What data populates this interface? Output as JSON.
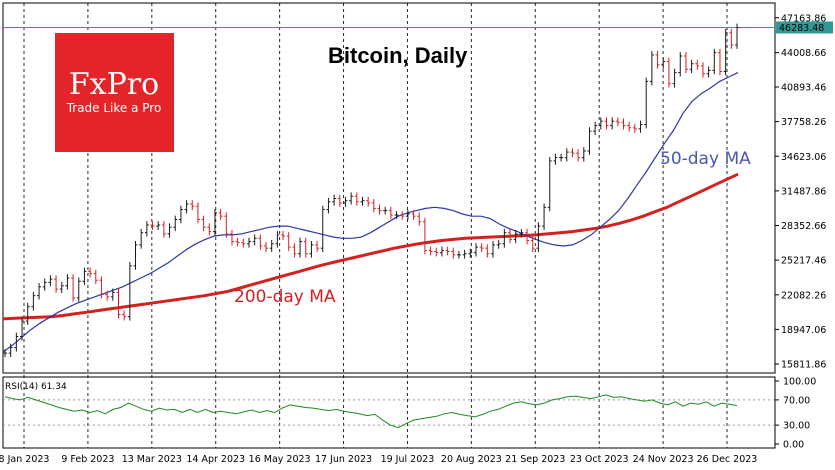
{
  "chart_data": {
    "type": "line",
    "title": "Bitcoin, Daily",
    "logo": {
      "brand": "FxPro",
      "tagline": "Trade Like a Pro",
      "color": "#e3252a"
    },
    "price_axis": {
      "ylim": [
        15000,
        48500
      ],
      "ticks": [
        "47163.86",
        "44008.66",
        "40893.46",
        "37758.26",
        "34623.06",
        "31487.86",
        "28352.66",
        "25217.46",
        "22082.26",
        "18947.06",
        "15811.86"
      ],
      "tick_values": [
        47163.86,
        44008.66,
        40893.46,
        37758.26,
        34623.06,
        31487.86,
        28352.66,
        25217.46,
        22082.26,
        18947.06,
        15811.86
      ],
      "current_price": "46283.48",
      "current_price_value": 46283.48
    },
    "x_axis": {
      "labels": [
        "8 Jan 2023",
        "9 Feb 2023",
        "13 Mar 2023",
        "14 Apr 2023",
        "16 May 2023",
        "17 Jun 2023",
        "19 Jul 2023",
        "20 Aug 2023",
        "21 Sep 2023",
        "23 Oct 2023",
        "24 Nov 2023",
        "26 Dec 2023"
      ]
    },
    "series": [
      {
        "name": "Price",
        "color": "#000000",
        "values": [
          16800,
          17300,
          18300,
          19700,
          21000,
          22000,
          22800,
          23200,
          23500,
          22600,
          22900,
          23600,
          21800,
          23300,
          24200,
          24000,
          23400,
          22100,
          21900,
          22300,
          20300,
          20100,
          24700,
          26600,
          27700,
          28400,
          28300,
          28400,
          27600,
          28200,
          28900,
          29800,
          30300,
          30100,
          28900,
          28200,
          27800,
          29500,
          29200,
          27600,
          26900,
          26800,
          26700,
          26900,
          27200,
          26500,
          26300,
          26700,
          27500,
          27400,
          26400,
          25800,
          26900,
          25800,
          26600,
          26300,
          29800,
          30500,
          30800,
          30400,
          30600,
          31000,
          30500,
          30600,
          30400,
          29900,
          29700,
          29700,
          29300,
          29300,
          29200,
          29400,
          29200,
          28700,
          26100,
          26000,
          25900,
          26100,
          26000,
          25700,
          25700,
          25800,
          25900,
          26400,
          26300,
          25800,
          26600,
          26700,
          27700,
          27100,
          27600,
          27700,
          27000,
          26300,
          28300,
          30000,
          34200,
          34500,
          34500,
          35000,
          34900,
          34500,
          35100,
          36900,
          37400,
          37800,
          37400,
          37800,
          37700,
          37400,
          37200,
          37100,
          37500,
          41400,
          43800,
          42900,
          43200,
          41200,
          42200,
          43700,
          42500,
          43000,
          42800,
          42100,
          42400,
          44000,
          42300,
          45800,
          44700,
          46283
        ]
      },
      {
        "name": "50-day MA",
        "color": "#2c38a8",
        "values": [
          16900,
          17500,
          18200,
          18900,
          19500,
          20000,
          20500,
          20900,
          21300,
          21600,
          21900,
          22200,
          22500,
          22800,
          23200,
          23600,
          24000,
          24500,
          25000,
          25600,
          26200,
          26700,
          27100,
          27400,
          27500,
          27500,
          27600,
          27800,
          28000,
          28200,
          28300,
          28300,
          28100,
          27900,
          27700,
          27500,
          27300,
          27200,
          27200,
          27300,
          27700,
          28200,
          28700,
          29200,
          29500,
          29700,
          29900,
          30000,
          29900,
          29700,
          29400,
          29200,
          29200,
          29000,
          28500,
          28100,
          27800,
          27400,
          27100,
          26800,
          26600,
          26500,
          26600,
          27000,
          27500,
          28200,
          28900,
          29700,
          30800,
          32000,
          33200,
          34500,
          35800,
          37000,
          38500,
          39600,
          40300,
          40800,
          41400,
          41800,
          42200
        ]
      },
      {
        "name": "200-day MA",
        "color": "#d62020",
        "values": [
          19900,
          19950,
          20000,
          20050,
          20100,
          20200,
          20350,
          20500,
          20650,
          20800,
          20950,
          21100,
          21250,
          21400,
          21550,
          21700,
          21850,
          22000,
          22200,
          22400,
          22700,
          23000,
          23300,
          23600,
          23900,
          24200,
          24500,
          24800,
          25050,
          25300,
          25550,
          25800,
          26050,
          26300,
          26500,
          26700,
          26850,
          27000,
          27100,
          27200,
          27250,
          27300,
          27350,
          27400,
          27450,
          27500,
          27600,
          27700,
          27800,
          27950,
          28100,
          28300,
          28550,
          28850,
          29200,
          29600,
          30000,
          30500,
          31000,
          31500,
          32000,
          32500,
          33000
        ]
      },
      {
        "name": "RSI(14)",
        "color": "#1f8a1f",
        "values": [
          75,
          72,
          70,
          74,
          70,
          66,
          62,
          58,
          55,
          52,
          54,
          50,
          53,
          48,
          55,
          58,
          65,
          60,
          55,
          52,
          57,
          54,
          55,
          50,
          55,
          50,
          55,
          50,
          52,
          50,
          48,
          51,
          54,
          50,
          53,
          50,
          57,
          62,
          60,
          58,
          57,
          55,
          53,
          55,
          52,
          50,
          48,
          45,
          47,
          38,
          30,
          26,
          32,
          38,
          40,
          42,
          44,
          48,
          50,
          47,
          45,
          43,
          47,
          52,
          55,
          60,
          65,
          67,
          64,
          62,
          65,
          70,
          72,
          75,
          76,
          74,
          72,
          75,
          78,
          74,
          75,
          72,
          70,
          68,
          70,
          65,
          62,
          67,
          60,
          65,
          63,
          67,
          60,
          65,
          63,
          61
        ]
      }
    ],
    "rsi": {
      "label": "RSI(14) 61.34",
      "ylim": [
        0,
        100
      ],
      "ticks": [
        "100.00",
        "70.00",
        "30.00",
        "0.00"
      ],
      "tick_values": [
        100,
        70,
        30,
        0
      ],
      "levels": [
        70,
        30
      ]
    },
    "annotations": {
      "ma50_label": "50-day MA",
      "ma200_label": "200-day MA"
    },
    "grid": "vertical dashed at date labels",
    "legend": "inline labels"
  }
}
